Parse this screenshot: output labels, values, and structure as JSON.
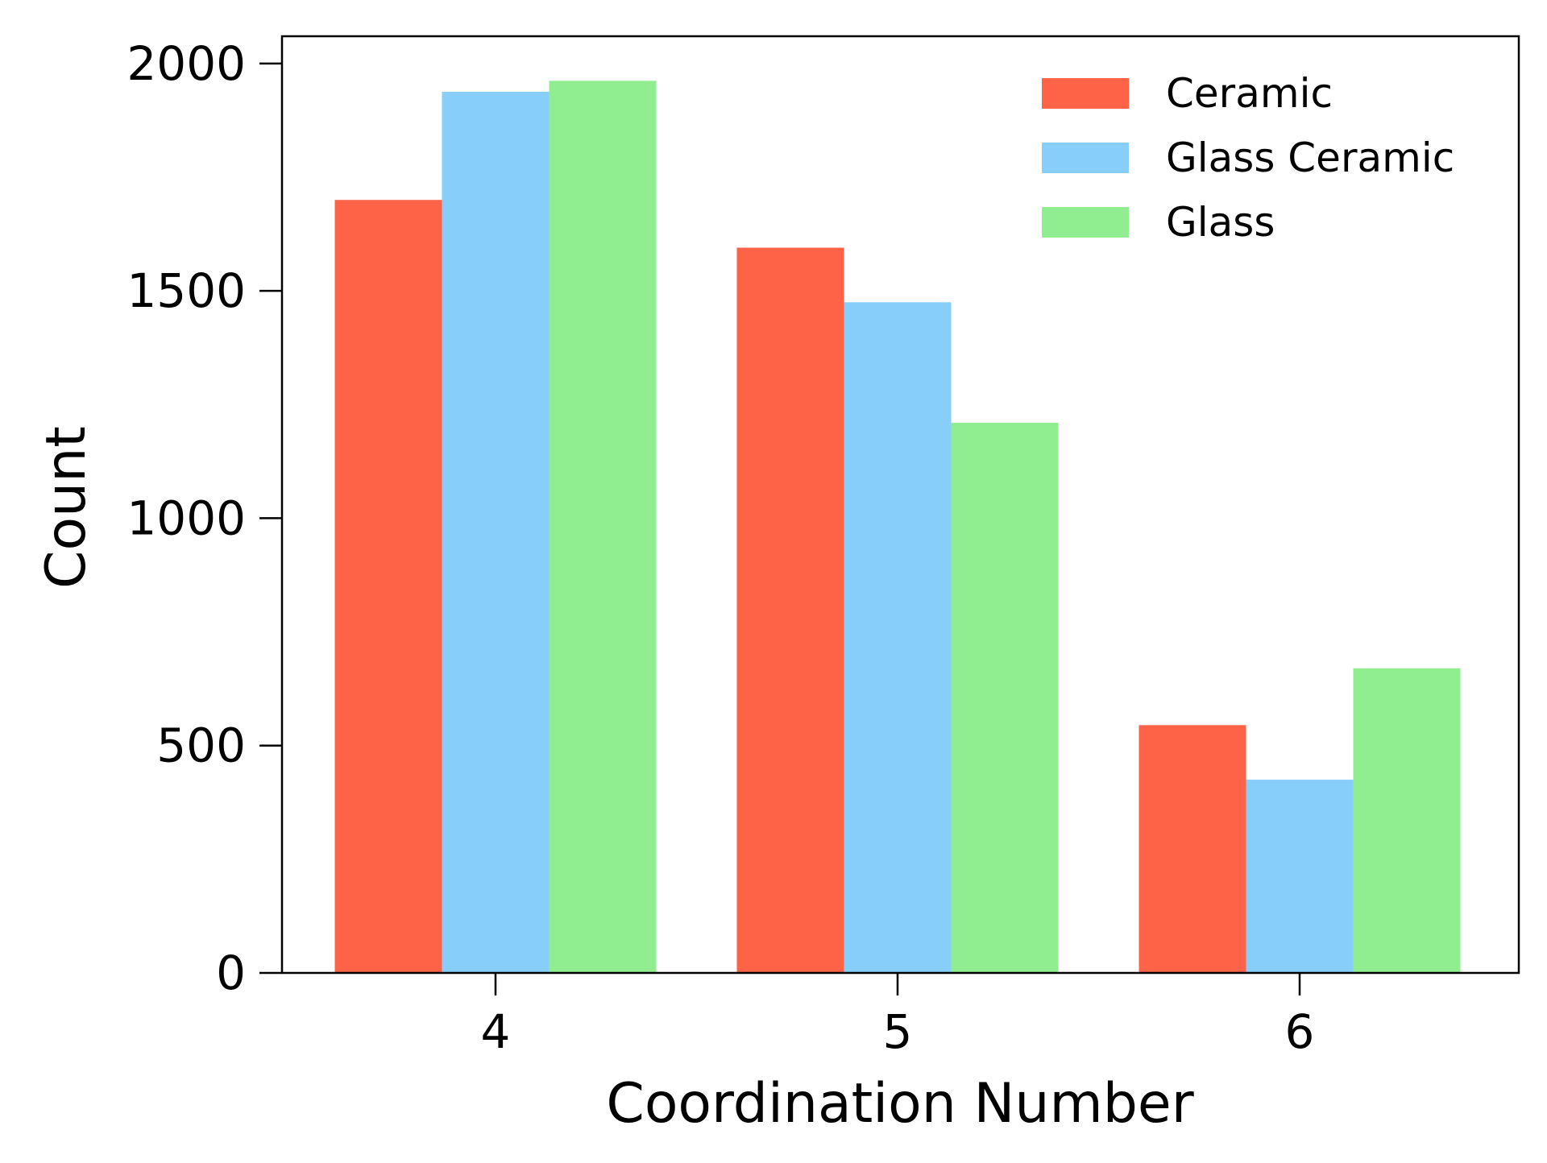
{
  "chart_data": {
    "type": "bar",
    "title": "",
    "xlabel": "Coordination Number",
    "ylabel": "Count",
    "categories": [
      "4",
      "5",
      "6"
    ],
    "ylim": [
      0,
      2060
    ],
    "yticks": [
      0,
      500,
      1000,
      1500,
      2000
    ],
    "grid": false,
    "legend_position": "top-right",
    "series": [
      {
        "name": "Ceramic",
        "color": "#ff6347",
        "values": [
          1700,
          1595,
          545
        ]
      },
      {
        "name": "Glass Ceramic",
        "color": "#87cefa",
        "values": [
          1938,
          1475,
          425
        ]
      },
      {
        "name": "Glass",
        "color": "#90ee90",
        "values": [
          1962,
          1210,
          670
        ]
      }
    ]
  }
}
